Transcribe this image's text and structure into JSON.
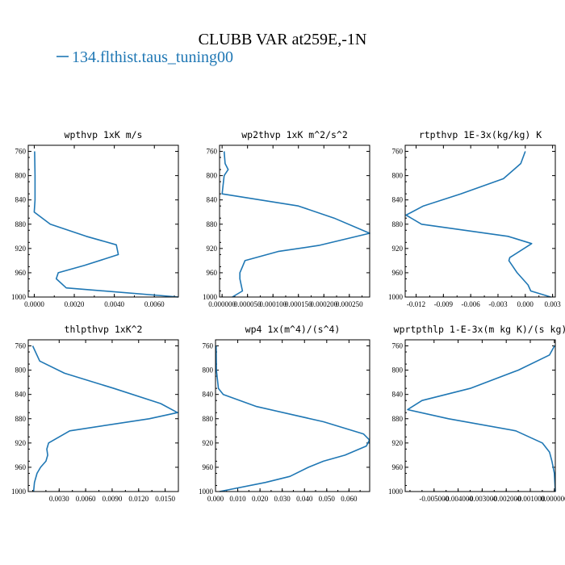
{
  "title": "CLUBB VAR at259E,-1N",
  "legend": {
    "label": "134.flthist.taus_tuning00",
    "color": "#1f77b4"
  },
  "chart_data": [
    {
      "type": "line",
      "title": "wpthvp  1xK m/s",
      "y": [
        760,
        800,
        840,
        860,
        880,
        900,
        914,
        930,
        948,
        960,
        970,
        985,
        1000
      ],
      "x": [
        2e-05,
        4e-05,
        4e-05,
        0.0,
        0.0008,
        0.0026,
        0.0041,
        0.0042,
        0.0025,
        0.0012,
        0.0011,
        0.0016,
        0.0072
      ],
      "xlim": [
        -0.0003,
        0.0072
      ],
      "ylim": [
        1000,
        750
      ],
      "xticks": [
        0.0,
        0.002,
        0.004,
        0.006
      ],
      "xtick_labels": [
        "0.0000",
        "0.0020",
        "0.0040",
        "0.0060"
      ],
      "yticks": [
        760,
        800,
        840,
        880,
        920,
        960,
        1000
      ],
      "ytick_labels": [
        "760",
        "800",
        "840",
        "880",
        "920",
        "960",
        "1000"
      ]
    },
    {
      "type": "line",
      "title": "wp2thvp  1xK m^2/s^2",
      "y": [
        760,
        780,
        790,
        800,
        830,
        850,
        870,
        895,
        915,
        925,
        940,
        950,
        960,
        970,
        990,
        1000
      ],
      "x": [
        4e-06,
        6e-06,
        1.2e-05,
        4e-06,
        0.0,
        0.00015,
        0.00022,
        0.00029,
        0.00019,
        0.00011,
        4.5e-05,
        4e-05,
        3.5e-05,
        3.5e-05,
        4e-05,
        2e-05
      ],
      "xlim": [
        -5e-06,
        0.00029
      ],
      "ylim": [
        1000,
        750
      ],
      "xticks": [
        0.0,
        5e-05,
        0.0001,
        0.00015,
        0.0002,
        0.00025
      ],
      "xtick_labels": [
        "0.000000",
        "0.000050",
        "0.000100",
        "0.000150",
        "0.000200",
        "0.000250"
      ],
      "yticks": [
        760,
        800,
        840,
        880,
        920,
        960,
        1000
      ],
      "ytick_labels": [
        "760",
        "800",
        "840",
        "880",
        "920",
        "960",
        "1000"
      ]
    },
    {
      "type": "line",
      "title": "rtpthvp  1E-3x(kg/kg) K",
      "y": [
        760,
        780,
        805,
        830,
        850,
        865,
        880,
        900,
        912,
        935,
        940,
        960,
        980,
        990,
        1000
      ],
      "x": [
        0.0,
        -0.0005,
        -0.0024,
        -0.0071,
        -0.0112,
        -0.0131,
        -0.0114,
        -0.0019,
        0.0007,
        -0.0017,
        -0.0018,
        -0.0009,
        0.0003,
        0.0006,
        0.0028
      ],
      "xlim": [
        -0.0132,
        0.0033
      ],
      "ylim": [
        1000,
        750
      ],
      "xticks": [
        -0.012,
        -0.009,
        -0.006,
        -0.003,
        0.0,
        0.003
      ],
      "xtick_labels": [
        "-0.012",
        "-0.009",
        "-0.006",
        "-0.003",
        "0.000",
        "0.003"
      ],
      "yticks": [
        760,
        800,
        840,
        880,
        920,
        960,
        1000
      ],
      "ytick_labels": [
        "760",
        "800",
        "840",
        "880",
        "920",
        "960",
        "1000"
      ]
    },
    {
      "type": "line",
      "title": "thlpthvp  1xK^2",
      "y": [
        760,
        785,
        805,
        830,
        855,
        870,
        880,
        900,
        920,
        930,
        940,
        950,
        960,
        970,
        985,
        1000
      ],
      "x": [
        0.0,
        0.0008,
        0.0036,
        0.0092,
        0.0145,
        0.0164,
        0.0132,
        0.0042,
        0.0018,
        0.0016,
        0.0017,
        0.0015,
        0.0009,
        0.0005,
        0.0002,
        0.0001
      ],
      "xlim": [
        -0.0005,
        0.0165
      ],
      "ylim": [
        1000,
        750
      ],
      "xticks": [
        0.003,
        0.006,
        0.009,
        0.012,
        0.015
      ],
      "xtick_labels": [
        "0.0030",
        "0.0060",
        "0.0090",
        "0.0120",
        "0.0150"
      ],
      "yticks": [
        760,
        800,
        840,
        880,
        920,
        960,
        1000
      ],
      "ytick_labels": [
        "760",
        "800",
        "840",
        "880",
        "920",
        "960",
        "1000"
      ]
    },
    {
      "type": "line",
      "title": "wp4  1x(m^4)/(s^4)",
      "y": [
        760,
        800,
        830,
        840,
        860,
        885,
        905,
        915,
        925,
        940,
        950,
        960,
        975,
        985,
        1000
      ],
      "x": [
        0.0003,
        0.0004,
        0.0013,
        0.0035,
        0.0185,
        0.0485,
        0.0665,
        0.0692,
        0.0678,
        0.0582,
        0.0485,
        0.0418,
        0.0335,
        0.0225,
        0.0018
      ],
      "xlim": [
        0.0,
        0.0693
      ],
      "ylim": [
        1000,
        750
      ],
      "xticks": [
        0.0,
        0.01,
        0.02,
        0.03,
        0.04,
        0.05,
        0.06
      ],
      "xtick_labels": [
        "0.000",
        "0.010",
        "0.020",
        "0.030",
        "0.040",
        "0.050",
        "0.060"
      ],
      "yticks": [
        760,
        800,
        840,
        880,
        920,
        960,
        1000
      ],
      "ytick_labels": [
        "760",
        "800",
        "840",
        "880",
        "920",
        "960",
        "1000"
      ]
    },
    {
      "type": "line",
      "title": "wprtpthlp  1-E-3x(m kg K)/(s kg)",
      "y": [
        760,
        775,
        800,
        830,
        850,
        865,
        880,
        900,
        920,
        935,
        950,
        970,
        985,
        1000
      ],
      "x": [
        5e-06,
        -0.0002,
        -0.0015,
        -0.0035,
        -0.0055,
        -0.0061,
        -0.0044,
        -0.0016,
        -0.0005,
        -0.0002,
        -0.0001,
        0.0,
        2e-05,
        4e-05
      ],
      "xlim": [
        -0.0062,
        4e-05
      ],
      "ylim": [
        1000,
        750
      ],
      "xticks": [
        -0.005,
        -0.004,
        -0.003,
        -0.002,
        -0.001,
        0.0
      ],
      "xtick_labels": [
        "-0.005000",
        "-0.004000",
        "-0.003000",
        "-0.002000",
        "-0.001000",
        "0.000000"
      ],
      "yticks": [
        760,
        800,
        840,
        880,
        920,
        960,
        1000
      ],
      "ytick_labels": [
        "760",
        "800",
        "840",
        "880",
        "920",
        "960",
        "1000"
      ]
    }
  ]
}
